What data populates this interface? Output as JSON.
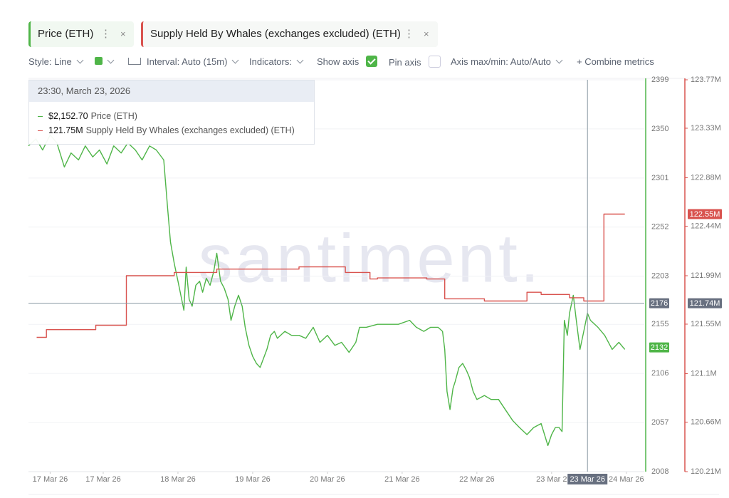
{
  "tabs": {
    "close": "×",
    "menu": "⋮"
  },
  "toolbar": {
    "style": "Style: Line",
    "interval": "Interval: Auto (15m)",
    "indicators": "Indicators:",
    "show_axis": "Show axis",
    "pin_axis": "Pin axis",
    "axis_minmax": "Axis max/min: Auto/Auto",
    "combine": "+  Combine metrics"
  },
  "watermark": "santiment.",
  "tooltip": {
    "title": "23:30, March 23, 2026",
    "rows": [
      "$2,152.70",
      "121.75M"
    ]
  },
  "chart_data": {
    "type": "line",
    "xlim": [
      16,
      24.24
    ],
    "xticks": [
      {
        "value": 16.29,
        "label": "17 Mar 26"
      },
      {
        "value": 17,
        "label": "17 Mar 26"
      },
      {
        "value": 18,
        "label": "18 Mar 26"
      },
      {
        "value": 19,
        "label": "19 Mar 26"
      },
      {
        "value": 20,
        "label": "20 Mar 26"
      },
      {
        "value": 21,
        "label": "21 Mar 26"
      },
      {
        "value": 22,
        "label": "22 Mar 26"
      },
      {
        "value": 23,
        "label": "23 Mar 2"
      },
      {
        "value": 24,
        "label": "24 Mar 26"
      }
    ],
    "ylim": [
      2008,
      2399
    ],
    "yticks": [
      2008,
      2057,
      2106,
      2155,
      2203,
      2252,
      2301,
      2350,
      2399
    ],
    "y2lim": [
      120.21,
      123.77
    ],
    "y2ticks": [
      {
        "value": 120.21,
        "label": "120.21M"
      },
      {
        "value": 120.66,
        "label": "120.66M"
      },
      {
        "value": 121.1,
        "label": "121.1M"
      },
      {
        "value": 121.55,
        "label": "121.55M"
      },
      {
        "value": 121.99,
        "label": "121.99M"
      },
      {
        "value": 122.44,
        "label": "122.44M"
      },
      {
        "value": 122.88,
        "label": "122.88M"
      },
      {
        "value": 123.33,
        "label": "123.33M"
      },
      {
        "value": 123.77,
        "label": "123.77M"
      }
    ],
    "grid": true,
    "crosshair": {
      "x": {
        "value": 23.48,
        "label": "23 Mar 26"
      },
      "y": 2176,
      "y2": {
        "value": 121.74,
        "label": "121.74M"
      }
    },
    "series": [
      {
        "name": "Price (ETH)",
        "color": "#4fb548",
        "axis": "y",
        "last_label": 2132,
        "x": [
          16.0,
          16.1,
          16.19,
          16.29,
          16.38,
          16.48,
          16.57,
          16.67,
          16.76,
          16.86,
          16.95,
          17.05,
          17.14,
          17.24,
          17.33,
          17.43,
          17.52,
          17.62,
          17.71,
          17.81,
          17.86,
          17.9,
          17.95,
          18.0,
          18.05,
          18.08,
          18.11,
          18.15,
          18.19,
          18.24,
          18.29,
          18.33,
          18.38,
          18.43,
          18.48,
          18.52,
          18.57,
          18.62,
          18.67,
          18.71,
          18.76,
          18.81,
          18.86,
          18.9,
          18.95,
          19.0,
          19.05,
          19.1,
          19.14,
          19.19,
          19.24,
          19.29,
          19.33,
          19.43,
          19.52,
          19.62,
          19.71,
          19.81,
          19.9,
          20.0,
          20.1,
          20.19,
          20.29,
          20.38,
          20.43,
          20.52,
          20.67,
          20.81,
          20.95,
          21.1,
          21.19,
          21.29,
          21.38,
          21.48,
          21.54,
          21.57,
          21.6,
          21.64,
          21.68,
          21.71,
          21.76,
          21.81,
          21.86,
          21.9,
          21.95,
          22.0,
          22.1,
          22.19,
          22.29,
          22.38,
          22.48,
          22.57,
          22.67,
          22.76,
          22.86,
          22.95,
          23.0,
          23.05,
          23.1,
          23.14,
          23.17,
          23.21,
          23.24,
          23.29,
          23.33,
          23.38,
          23.43,
          23.48,
          23.52,
          23.62,
          23.71,
          23.81,
          23.9,
          23.98
        ],
        "values": [
          2333,
          2340,
          2329,
          2344,
          2336,
          2312,
          2326,
          2319,
          2333,
          2322,
          2329,
          2315,
          2333,
          2326,
          2336,
          2329,
          2319,
          2333,
          2329,
          2319,
          2272,
          2237,
          2216,
          2198,
          2180,
          2169,
          2212,
          2180,
          2173,
          2194,
          2198,
          2187,
          2201,
          2194,
          2208,
          2226,
          2198,
          2191,
          2180,
          2159,
          2173,
          2184,
          2173,
          2152,
          2134,
          2123,
          2116,
          2112,
          2120,
          2130,
          2144,
          2148,
          2141,
          2148,
          2144,
          2144,
          2141,
          2152,
          2137,
          2144,
          2134,
          2137,
          2127,
          2137,
          2152,
          2152,
          2155,
          2155,
          2155,
          2159,
          2152,
          2148,
          2152,
          2152,
          2148,
          2130,
          2088,
          2070,
          2091,
          2098,
          2112,
          2116,
          2109,
          2102,
          2088,
          2080,
          2084,
          2080,
          2080,
          2070,
          2059,
          2052,
          2045,
          2052,
          2056,
          2034,
          2045,
          2052,
          2052,
          2048,
          2159,
          2144,
          2166,
          2184,
          2159,
          2130,
          2148,
          2166,
          2159,
          2152,
          2144,
          2130,
          2137,
          2130
        ]
      },
      {
        "name": "Supply Held By Whales (exchanges excluded) (ETH)",
        "color": "#d9534f",
        "axis": "y2",
        "last_label": {
          "value": 122.55,
          "label": "122.55M"
        },
        "x": [
          16.11,
          16.24,
          16.24,
          16.9,
          16.9,
          17.31,
          17.31,
          17.95,
          17.95,
          18.52,
          18.52,
          19.62,
          19.62,
          20.24,
          20.24,
          20.57,
          20.57,
          20.67,
          20.67,
          21.33,
          21.33,
          21.57,
          21.57,
          22.1,
          22.1,
          22.67,
          22.67,
          22.86,
          22.86,
          23.24,
          23.24,
          23.43,
          23.43,
          23.7,
          23.7,
          23.98
        ],
        "values": [
          121.43,
          121.43,
          121.5,
          121.5,
          121.54,
          121.54,
          121.99,
          121.99,
          122.02,
          122.02,
          122.05,
          122.05,
          122.07,
          122.07,
          122.02,
          122.02,
          121.96,
          121.96,
          121.97,
          121.97,
          121.96,
          121.96,
          121.78,
          121.78,
          121.76,
          121.76,
          121.84,
          121.84,
          121.82,
          121.82,
          121.79,
          121.79,
          121.76,
          121.76,
          122.55,
          122.55
        ]
      }
    ]
  }
}
